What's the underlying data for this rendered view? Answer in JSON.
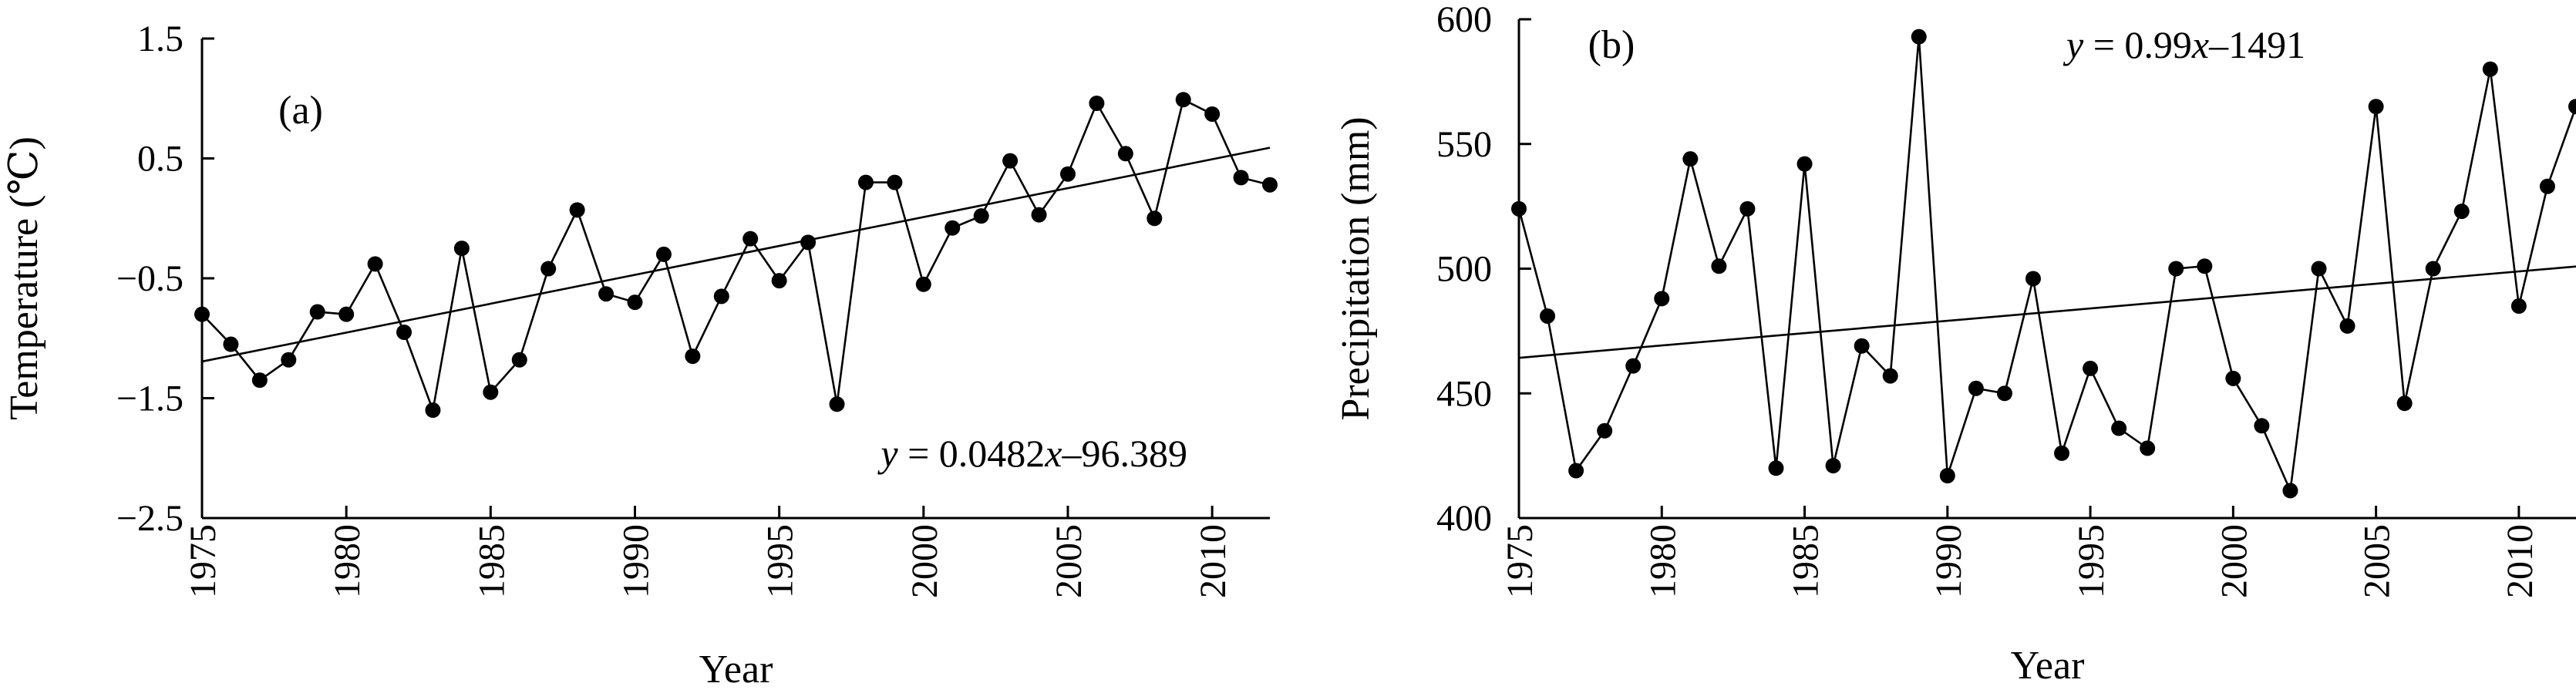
{
  "chart_data": [
    {
      "type": "line",
      "panel_label": "(a)",
      "xlabel": "Year",
      "ylabel": "Temperature (℃)",
      "xlim": [
        1975,
        2012
      ],
      "ylim": [
        -2.5,
        1.5
      ],
      "xticks": [
        1975,
        1980,
        1985,
        1990,
        1995,
        2000,
        2005,
        2010
      ],
      "xtick_labels": [
        "1975",
        "1980",
        "1985",
        "1990",
        "1995",
        "2000",
        "2005",
        "2010"
      ],
      "yticks": [
        -2.5,
        -1.5,
        -0.5,
        0.5,
        1.5
      ],
      "ytick_labels": [
        "−2.5",
        "−1.5",
        "−0.5",
        "0.5",
        "1.5"
      ],
      "equation_y": "y",
      "equation_rest": " = 0.0482",
      "equation_x": "x",
      "equation_tail": "–96.389",
      "trend": {
        "slope": 0.0482,
        "intercept": -96.389
      },
      "x": [
        1975,
        1976,
        1977,
        1978,
        1979,
        1980,
        1981,
        1982,
        1983,
        1984,
        1985,
        1986,
        1987,
        1988,
        1989,
        1990,
        1991,
        1992,
        1993,
        1994,
        1995,
        1996,
        1997,
        1998,
        1999,
        2000,
        2001,
        2002,
        2003,
        2004,
        2005,
        2006,
        2007,
        2008,
        2009,
        2010,
        2011,
        2012
      ],
      "values": [
        -0.8,
        -1.05,
        -1.35,
        -1.18,
        -0.78,
        -0.8,
        -0.38,
        -0.95,
        -1.6,
        -0.25,
        -1.45,
        -1.18,
        -0.42,
        0.07,
        -0.63,
        -0.7,
        -0.3,
        -1.15,
        -0.65,
        -0.17,
        -0.52,
        -0.2,
        -1.55,
        0.3,
        0.3,
        -0.55,
        -0.08,
        0.02,
        0.48,
        0.03,
        0.37,
        0.96,
        0.54,
        0.0,
        0.99,
        0.87,
        0.34,
        0.28
      ]
    },
    {
      "type": "line",
      "panel_label": "(b)",
      "xlabel": "Year",
      "ylabel": "Precipitation (mm)",
      "xlim": [
        1975,
        2012
      ],
      "ylim": [
        400,
        600
      ],
      "xticks": [
        1975,
        1980,
        1985,
        1990,
        1995,
        2000,
        2005,
        2010
      ],
      "xtick_labels": [
        "1975",
        "1980",
        "1985",
        "1990",
        "1995",
        "2000",
        "2005",
        "2010"
      ],
      "yticks": [
        400,
        450,
        500,
        550,
        600
      ],
      "ytick_labels": [
        "400",
        "450",
        "500",
        "550",
        "600"
      ],
      "equation_y": "y",
      "equation_rest": " = 0.99",
      "equation_x": "x",
      "equation_tail": "–1491",
      "trend": {
        "slope": 0.99,
        "intercept": -1491
      },
      "x": [
        1975,
        1976,
        1977,
        1978,
        1979,
        1980,
        1981,
        1982,
        1983,
        1984,
        1985,
        1986,
        1987,
        1988,
        1989,
        1990,
        1991,
        1992,
        1993,
        1994,
        1995,
        1996,
        1997,
        1998,
        1999,
        2000,
        2001,
        2002,
        2003,
        2004,
        2005,
        2006,
        2007,
        2008,
        2009,
        2010,
        2011,
        2012
      ],
      "values": [
        524,
        481,
        419,
        435,
        461,
        488,
        544,
        501,
        524,
        420,
        542,
        421,
        469,
        457,
        593,
        417,
        452,
        450,
        496,
        426,
        460,
        436,
        428,
        500,
        501,
        456,
        437,
        411,
        500,
        477,
        565,
        446,
        500,
        523,
        580,
        485,
        533,
        565
      ]
    }
  ]
}
